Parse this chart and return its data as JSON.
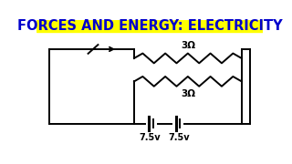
{
  "title": "FORCES AND ENERGY: ELECTRICITY",
  "title_color": "#0000CC",
  "title_bg": "#FFFF00",
  "title_fontsize": 10.5,
  "circuit_color": "#000000",
  "label_3ohm_top": "3Ω",
  "label_3ohm_bot": "3Ω",
  "label_batt1": "7.5v",
  "label_batt2": "7.5v",
  "bg_color": "#ffffff",
  "lw": 1.4
}
